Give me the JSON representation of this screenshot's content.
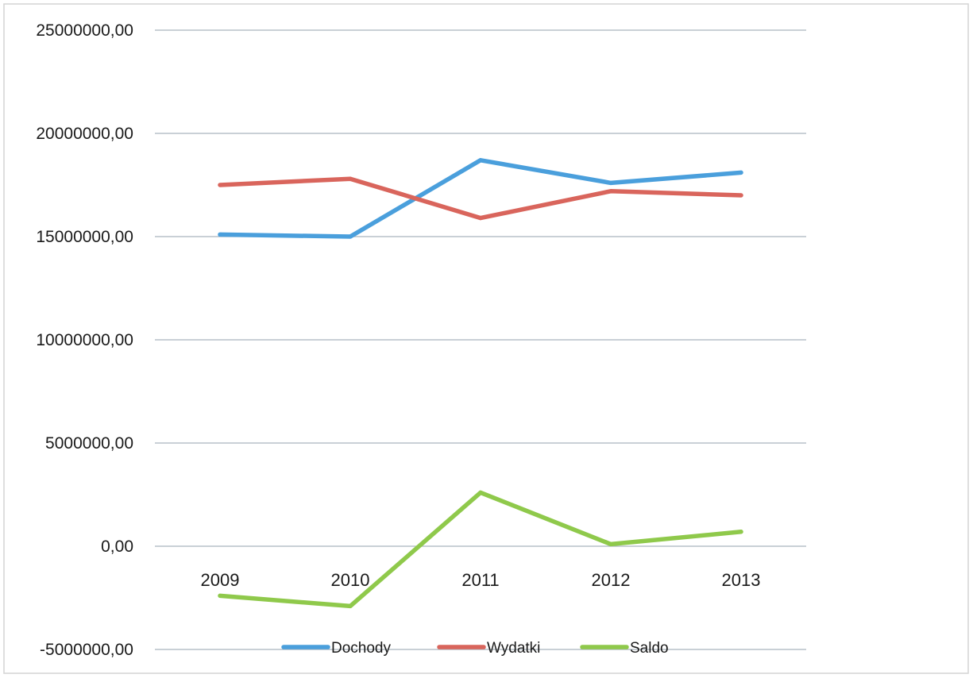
{
  "chart_data": {
    "type": "line",
    "categories": [
      "2009",
      "2010",
      "2011",
      "2012",
      "2013"
    ],
    "series": [
      {
        "name": "Dochody",
        "color": "#4a9fdc",
        "values": [
          15100000,
          15000000,
          18700000,
          17600000,
          18100000
        ]
      },
      {
        "name": "Wydatki",
        "color": "#d9655c",
        "values": [
          17500000,
          17800000,
          15900000,
          17200000,
          17000000
        ]
      },
      {
        "name": "Saldo",
        "color": "#8fc94b",
        "values": [
          -2400000,
          -2900000,
          2600000,
          100000,
          700000
        ]
      }
    ],
    "ylim": [
      -5000000,
      25000000
    ],
    "yticks": [
      25000000,
      20000000,
      15000000,
      10000000,
      5000000,
      0,
      -5000000
    ],
    "ytick_labels": [
      "25000000,00",
      "20000000,00",
      "15000000,00",
      "10000000,00",
      "5000000,00",
      "0,00",
      "-5000000,00"
    ],
    "grid": true,
    "legend_position": "bottom"
  }
}
